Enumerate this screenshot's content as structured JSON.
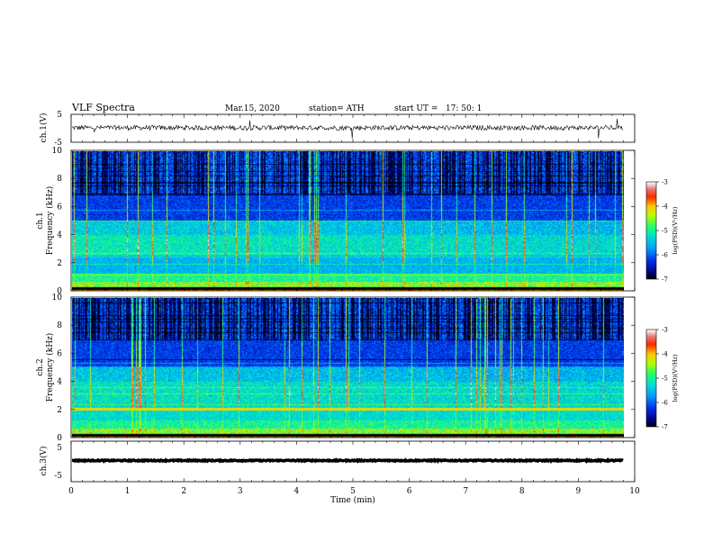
{
  "header": {
    "title": "VLF Spectra",
    "date": "Mar.15, 2020",
    "station": "station= ATH",
    "start": "start UT =   17: 50: 1"
  },
  "chart_data": [
    {
      "type": "line",
      "name": "ch1-waveform",
      "ylabel": "ch.1(V)",
      "ylim": [
        -5,
        5
      ],
      "yticks": [
        "5",
        "-5"
      ],
      "xlim": [
        0,
        10
      ],
      "description_values": {
        "baseline_v": 0.2,
        "noise_amplitude_v": 0.9
      }
    },
    {
      "type": "heatmap",
      "name": "ch1-spectrogram",
      "ylabel": "ch.1",
      "ylabel2": "Frequency (kHz)",
      "ylim": [
        0,
        10
      ],
      "yticks": [
        "0",
        "2",
        "4",
        "6",
        "8",
        "10"
      ],
      "xlim": [
        0,
        9.8
      ],
      "colorbar": {
        "label": "log(PSD)(V²/Hz)",
        "range": [
          -7,
          -3
        ],
        "ticks": [
          "-3",
          "-4",
          "-5",
          "-6",
          "-7"
        ]
      }
    },
    {
      "type": "heatmap",
      "name": "ch2-spectrogram",
      "ylabel": "ch.2",
      "ylabel2": "Frequency (kHz)",
      "ylim": [
        0,
        10
      ],
      "yticks": [
        "0",
        "2",
        "4",
        "6",
        "8",
        "10"
      ],
      "xlim": [
        0,
        9.8
      ],
      "colorbar": {
        "label": "log(PSD)(V²/Hz)",
        "range": [
          -7,
          -3
        ],
        "ticks": [
          "-3",
          "-4",
          "-5",
          "-6",
          "-7"
        ]
      }
    },
    {
      "type": "line",
      "name": "ch3-waveform",
      "ylabel": "ch.3(V)",
      "ylim": [
        -5,
        5
      ],
      "yticks": [
        "5",
        "-5"
      ],
      "xlim": [
        0,
        10
      ],
      "description_values": {
        "baseline_v": 0,
        "noise_amplitude_v": 0.15
      }
    }
  ],
  "xaxis": {
    "label": "Time (min)",
    "ticks": [
      "0",
      "1",
      "2",
      "3",
      "4",
      "5",
      "6",
      "7",
      "8",
      "9",
      "10"
    ]
  }
}
